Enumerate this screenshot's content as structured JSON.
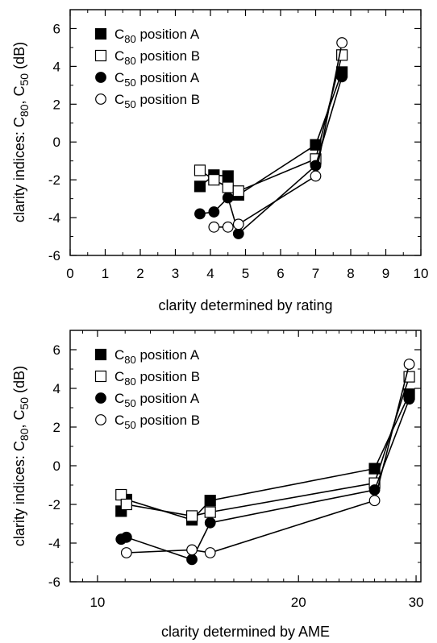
{
  "chart_data": [
    {
      "type": "line",
      "xlabel": "clarity determined by rating",
      "ylabel_prefix": "clarity indices: C",
      "ylabel_sub1": "80",
      "ylabel_mid": ", C",
      "ylabel_sub2": "50",
      "ylabel_suffix": " (dB)",
      "xlim": [
        0,
        10
      ],
      "ylim": [
        -6,
        7
      ],
      "x_ticks": [
        0,
        1,
        2,
        3,
        4,
        5,
        6,
        7,
        8,
        9,
        10
      ],
      "y_ticks": [
        -6,
        -4,
        -2,
        0,
        2,
        4,
        6
      ],
      "grid": false,
      "legend_position": "top-left",
      "series": [
        {
          "name_main": "C",
          "name_sub": "80",
          "name_rest": " position A",
          "marker": "square-filled",
          "x": [
            3.7,
            4.1,
            4.5,
            4.8,
            7.0,
            7.75
          ],
          "y": [
            -2.35,
            -1.75,
            -1.8,
            -2.8,
            -0.15,
            3.7
          ]
        },
        {
          "name_main": "C",
          "name_sub": "80",
          "name_rest": " position B",
          "marker": "square-open",
          "x": [
            3.7,
            4.1,
            4.5,
            4.8,
            7.0,
            7.75
          ],
          "y": [
            -1.5,
            -2.0,
            -2.4,
            -2.6,
            -0.9,
            4.6
          ]
        },
        {
          "name_main": "C",
          "name_sub": "50",
          "name_rest": " position A",
          "marker": "circle-filled",
          "x": [
            3.7,
            4.1,
            4.5,
            4.8,
            7.0,
            7.75
          ],
          "y": [
            -3.8,
            -3.7,
            -2.95,
            -4.85,
            -1.25,
            3.45
          ]
        },
        {
          "name_main": "C",
          "name_sub": "50",
          "name_rest": " position B",
          "marker": "circle-open",
          "x": [
            4.1,
            4.5,
            4.8,
            7.0,
            7.75
          ],
          "y": [
            -4.5,
            -4.5,
            -4.35,
            -1.8,
            5.25
          ]
        }
      ]
    },
    {
      "type": "line",
      "xlabel": "clarity determined by AME",
      "ylabel_prefix": "clarity indices: C",
      "ylabel_sub1": "80",
      "ylabel_mid": ", C",
      "ylabel_sub2": "50",
      "ylabel_suffix": " (dB)",
      "xscale": "log",
      "xlim": [
        9.1,
        30.5
      ],
      "ylim": [
        -6,
        7
      ],
      "x_ticks": [
        10,
        20,
        30
      ],
      "x_minor_ticks": [
        9.5,
        11,
        12,
        13,
        14,
        15,
        16,
        17,
        18,
        19,
        21,
        22,
        23,
        24,
        25,
        26,
        27,
        28,
        29
      ],
      "y_ticks": [
        -6,
        -4,
        -2,
        0,
        2,
        4,
        6
      ],
      "grid": false,
      "legend_position": "top-left",
      "series": [
        {
          "name_main": "C",
          "name_sub": "80",
          "name_rest": " position A",
          "marker": "square-filled",
          "x": [
            10.85,
            11.05,
            13.85,
            14.75,
            26.0,
            29.3
          ],
          "y": [
            -2.35,
            -1.75,
            -2.8,
            -1.8,
            -0.15,
            3.7
          ]
        },
        {
          "name_main": "C",
          "name_sub": "80",
          "name_rest": " position B",
          "marker": "square-open",
          "x": [
            10.85,
            11.05,
            13.85,
            14.75,
            26.0,
            29.3
          ],
          "y": [
            -1.5,
            -2.0,
            -2.6,
            -2.4,
            -0.9,
            4.6
          ]
        },
        {
          "name_main": "C",
          "name_sub": "50",
          "name_rest": " position A",
          "marker": "circle-filled",
          "x": [
            10.85,
            11.05,
            13.85,
            14.75,
            26.0,
            29.3
          ],
          "y": [
            -3.8,
            -3.7,
            -4.85,
            -2.95,
            -1.25,
            3.45
          ]
        },
        {
          "name_main": "C",
          "name_sub": "50",
          "name_rest": " position B",
          "marker": "circle-open",
          "x": [
            11.05,
            13.85,
            14.75,
            26.0,
            29.3
          ],
          "y": [
            -4.5,
            -4.35,
            -4.5,
            -1.8,
            5.25
          ]
        }
      ]
    }
  ]
}
